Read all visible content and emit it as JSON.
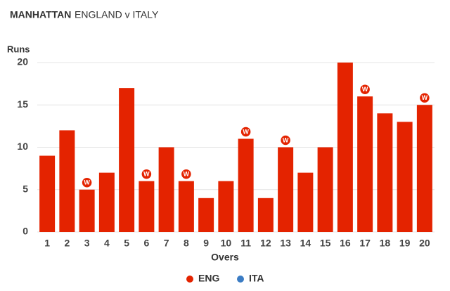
{
  "chart_data": {
    "type": "bar",
    "title": "MANHATTAN",
    "subtitle": "ENGLAND v ITALY",
    "y_label": "Runs",
    "x_label": "Overs",
    "categories": [
      "1",
      "2",
      "3",
      "4",
      "5",
      "6",
      "7",
      "8",
      "9",
      "10",
      "11",
      "12",
      "13",
      "14",
      "15",
      "16",
      "17",
      "18",
      "19",
      "20"
    ],
    "series": [
      {
        "name": "ENG",
        "color": "#e42300",
        "values": [
          9,
          12,
          5,
          7,
          17,
          6,
          10,
          6,
          4,
          6,
          11,
          4,
          10,
          7,
          10,
          20,
          16,
          14,
          13,
          15
        ],
        "wickets": [
          0,
          0,
          1,
          0,
          0,
          1,
          0,
          1,
          0,
          0,
          1,
          0,
          1,
          0,
          0,
          0,
          1,
          0,
          0,
          1
        ]
      },
      {
        "name": "ITA",
        "color": "#3b7cc4",
        "values": [
          null,
          null,
          null,
          null,
          null,
          null,
          null,
          null,
          null,
          null,
          null,
          null,
          null,
          null,
          null,
          null,
          null,
          null,
          null,
          null
        ]
      }
    ],
    "wicket_label": "W",
    "ylim": [
      0,
      20
    ],
    "yticks": [
      0,
      5,
      10,
      15,
      20
    ],
    "grid": true,
    "legend": "bottom"
  }
}
